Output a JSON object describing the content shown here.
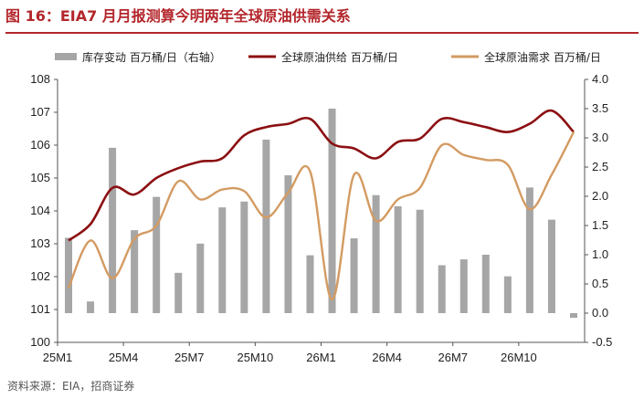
{
  "header": {
    "title": "图 16：EIA7 月月报测算今明两年全球原油供需关系"
  },
  "footer": {
    "source": "资料来源：EIA，招商证券"
  },
  "chart_data": {
    "type": "bar+line",
    "categories": [
      "25M1",
      "25M2",
      "25M3",
      "25M4",
      "25M5",
      "25M6",
      "25M7",
      "25M8",
      "25M9",
      "25M10",
      "25M11",
      "25M12",
      "26M1",
      "26M2",
      "26M3",
      "26M4",
      "26M5",
      "26M6",
      "26M7",
      "26M8",
      "26M9",
      "26M10",
      "26M11",
      "26M12"
    ],
    "x_tick_labels": [
      "25M1",
      "25M4",
      "25M7",
      "25M10",
      "26M1",
      "26M4",
      "26M7",
      "26M10"
    ],
    "left_axis": {
      "ylim": [
        100,
        108
      ],
      "ticks": [
        "100",
        "101",
        "102",
        "103",
        "104",
        "105",
        "106",
        "107",
        "108"
      ]
    },
    "right_axis": {
      "ylim": [
        -0.5,
        4.0
      ],
      "ticks": [
        "-0.5",
        "0.0",
        "0.5",
        "1.0",
        "1.5",
        "2.0",
        "2.5",
        "3.0",
        "3.5",
        "4.0"
      ]
    },
    "legend_position": "top",
    "bar_series": {
      "name": "库存变动 百万桶/日（右轴）",
      "axis": "right",
      "color": "#a6a6a6",
      "values": [
        1.29,
        0.2,
        2.83,
        1.42,
        1.99,
        0.69,
        1.19,
        1.81,
        1.91,
        2.97,
        2.36,
        0.99,
        3.5,
        1.28,
        2.02,
        1.83,
        1.77,
        0.82,
        0.92,
        1.0,
        0.63,
        2.15,
        1.6,
        -0.08
      ]
    },
    "line_series": [
      {
        "name": "全球原油供给 百万桶/日",
        "axis": "left",
        "color": "#8b0f12",
        "values": [
          103.1,
          103.6,
          104.7,
          104.5,
          105.0,
          105.3,
          105.5,
          105.6,
          106.3,
          106.55,
          106.65,
          106.8,
          106.05,
          105.9,
          105.6,
          106.1,
          106.2,
          106.8,
          106.7,
          106.55,
          106.4,
          106.65,
          107.05,
          106.4
        ]
      },
      {
        "name": "全球原油需求 百万桶/日",
        "axis": "left",
        "color": "#d39b62",
        "values": [
          101.65,
          103.1,
          101.95,
          103.15,
          103.55,
          104.9,
          104.35,
          104.65,
          104.6,
          103.8,
          104.55,
          105.2,
          101.3,
          105.1,
          103.7,
          104.35,
          104.7,
          106.0,
          105.7,
          105.55,
          105.4,
          104.05,
          105.1,
          106.4
        ]
      }
    ]
  }
}
